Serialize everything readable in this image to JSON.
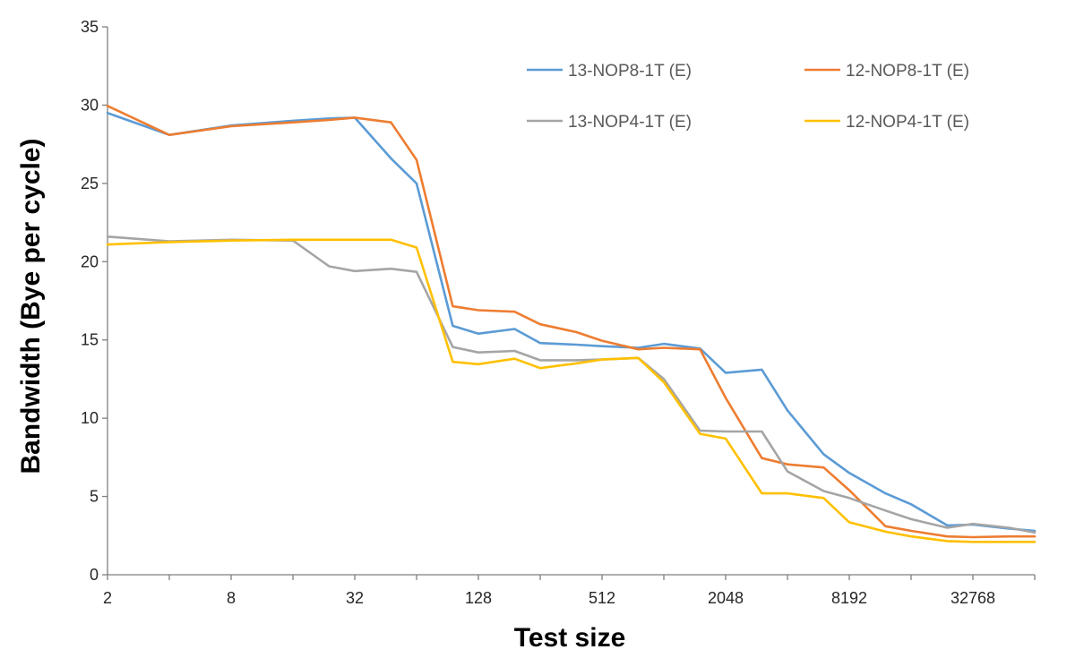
{
  "chart_data": {
    "type": "line",
    "xlabel": "Test size",
    "ylabel": "Bandwidth (Bye per cycle)",
    "x_scale": "log2",
    "xlim": [
      2,
      65536
    ],
    "ylim": [
      0,
      35
    ],
    "y_ticks": [
      0,
      5,
      10,
      15,
      20,
      25,
      30,
      35
    ],
    "x_ticks": [
      2,
      8,
      32,
      128,
      512,
      2048,
      8192,
      32768
    ],
    "x_tick_labels": [
      "2",
      "8",
      "32",
      "128",
      "512",
      "2048",
      "8192",
      "32768"
    ],
    "grid": false,
    "legend_position": "top-right (inside plot, 2 columns)",
    "x": [
      2,
      4,
      8,
      16,
      24,
      32,
      48,
      64,
      96,
      128,
      192,
      256,
      384,
      512,
      768,
      1024,
      1536,
      2048,
      3072,
      4096,
      6144,
      8192,
      12288,
      16384,
      24576,
      32768,
      49152,
      65536
    ],
    "series": [
      {
        "name": "13-NOP8-1T  (E)",
        "color": "#5B9BD5",
        "values": [
          29.5,
          28.1,
          28.7,
          29.0,
          29.15,
          29.2,
          26.6,
          25.0,
          15.9,
          15.4,
          15.7,
          14.8,
          14.7,
          14.6,
          14.5,
          14.75,
          14.45,
          12.9,
          13.1,
          10.5,
          7.7,
          6.5,
          5.2,
          4.5,
          3.15,
          3.2,
          2.95,
          2.8
        ]
      },
      {
        "name": "12-NOP8-1T (E)",
        "color": "#ED7D31",
        "values": [
          29.95,
          28.1,
          28.65,
          28.9,
          29.05,
          29.2,
          28.9,
          26.5,
          17.15,
          16.9,
          16.8,
          16.0,
          15.5,
          14.95,
          14.4,
          14.5,
          14.4,
          11.3,
          7.45,
          7.05,
          6.85,
          5.4,
          3.1,
          2.8,
          2.45,
          2.4,
          2.45,
          2.45
        ]
      },
      {
        "name": "13-NOP4-1T (E)",
        "color": "#A5A5A5",
        "values": [
          21.6,
          21.3,
          21.4,
          21.35,
          19.7,
          19.4,
          19.55,
          19.35,
          14.55,
          14.2,
          14.3,
          13.7,
          13.7,
          13.75,
          13.85,
          12.5,
          9.2,
          9.15,
          9.15,
          6.6,
          5.35,
          4.9,
          4.1,
          3.55,
          3.0,
          3.25,
          3.0,
          2.7
        ]
      },
      {
        "name": "12-NOP4-1T (E)",
        "color": "#FFC000",
        "values": [
          21.1,
          21.25,
          21.35,
          21.4,
          21.4,
          21.4,
          21.4,
          20.9,
          13.6,
          13.45,
          13.8,
          13.2,
          13.5,
          13.75,
          13.85,
          12.3,
          9.0,
          8.7,
          5.2,
          5.2,
          4.9,
          3.35,
          2.75,
          2.45,
          2.15,
          2.1,
          2.1,
          2.1
        ]
      }
    ]
  }
}
